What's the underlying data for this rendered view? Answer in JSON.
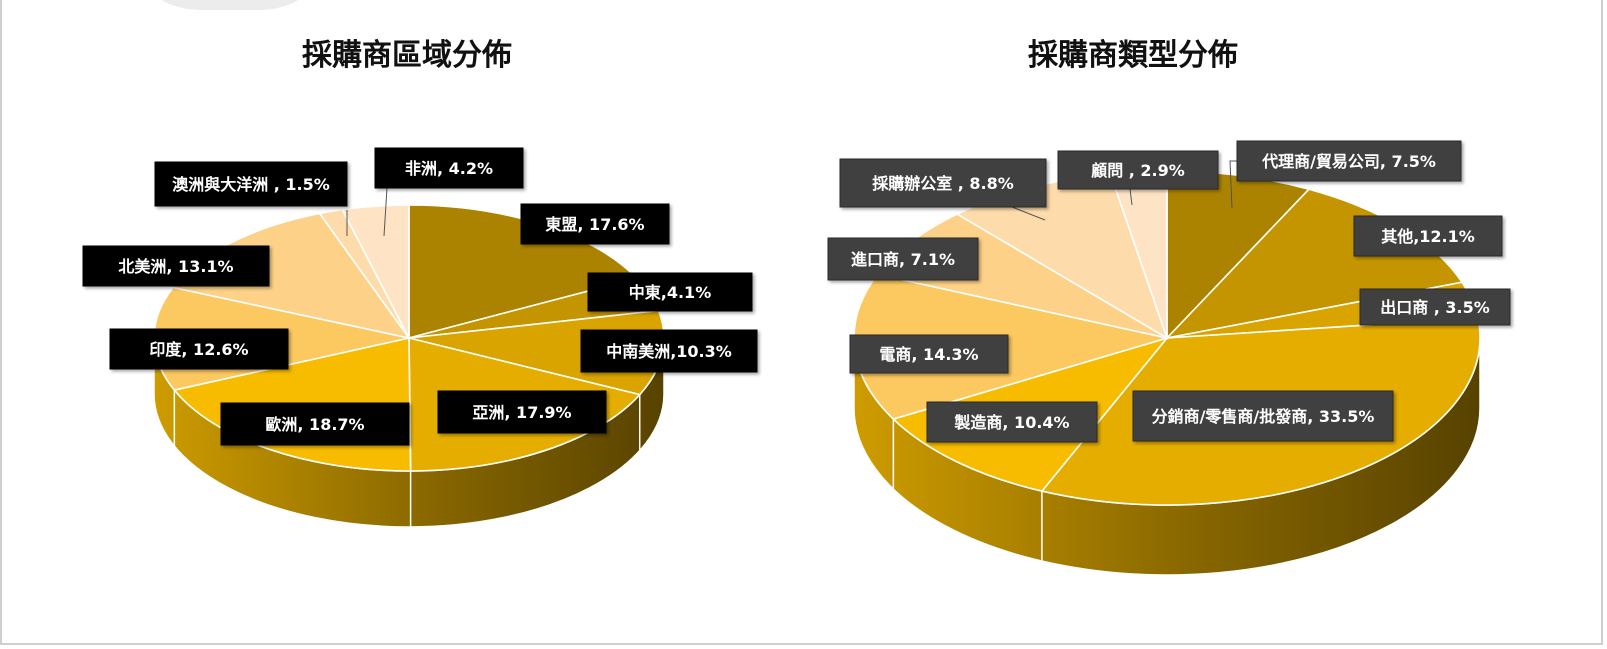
{
  "chart_data": [
    {
      "type": "pie",
      "title": "採購商區域分佈",
      "categories": [
        "東盟",
        "中東",
        "中南美洲",
        "亞洲",
        "歐洲",
        "印度",
        "北美洲",
        "澳洲與大洋洲",
        "非洲"
      ],
      "values": [
        17.6,
        4.1,
        10.3,
        17.9,
        18.7,
        12.6,
        13.1,
        1.5,
        4.2
      ],
      "labels": [
        "東盟, 17.6%",
        "中東,4.1%",
        "中南美洲,10.3%",
        "亞洲, 17.9%",
        "歐洲, 18.7%",
        "印度, 12.6%",
        "北美洲, 13.1%",
        "澳洲與大洋洲 , 1.5%",
        "非洲, 4.2%"
      ],
      "colors": [
        "#ab8300",
        "#c49500",
        "#d9a400",
        "#e4ad00",
        "#f7bc00",
        "#fcc860",
        "#fdd288",
        "#fedbaa",
        "#fee4c4"
      ],
      "label_style": "black-box"
    },
    {
      "type": "pie",
      "title": "採購商類型分佈",
      "categories": [
        "代理商/貿易公司",
        "其他",
        "出口商",
        "分銷商/零售商/批發商",
        "製造商",
        "電商",
        "進口商",
        "採購辦公室",
        "顧問"
      ],
      "values": [
        7.5,
        12.1,
        3.5,
        33.5,
        10.4,
        14.3,
        7.1,
        8.8,
        2.9
      ],
      "labels": [
        "代理商/貿易公司, 7.5%",
        "其他,12.1%",
        "出口商 , 3.5%",
        "分銷商/零售商/批發商, 33.5%",
        "製造商, 10.4%",
        "電商, 14.3%",
        "進口商, 7.1%",
        "採購辦公室 , 8.8%",
        "顧問 , 2.9%"
      ],
      "colors": [
        "#ab8300",
        "#c49500",
        "#d9a400",
        "#e4ad00",
        "#f7bc00",
        "#fcc860",
        "#fdd288",
        "#fedbaa",
        "#fee4c4"
      ],
      "label_style": "dark-gray-box"
    }
  ]
}
